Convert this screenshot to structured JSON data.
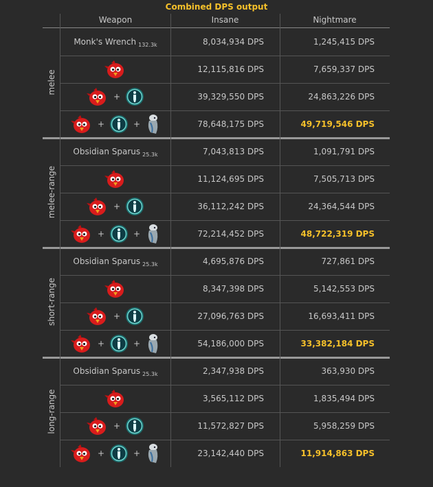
{
  "title": "Combined DPS output",
  "columns": [
    "Weapon",
    "Insane",
    "Nightmare"
  ],
  "separator": "+",
  "groups": [
    {
      "label": "melee",
      "weapon": "Monk's Wrench",
      "weapon_note": "132.3k",
      "rows": [
        {
          "insane": "8,034,934 DPS",
          "nightmare": "1,245,415 DPS"
        },
        {
          "insane": "12,115,816 DPS",
          "nightmare": "7,659,337 DPS"
        },
        {
          "insane": "39,329,550 DPS",
          "nightmare": "24,863,226 DPS"
        },
        {
          "insane": "78,648,175 DPS",
          "nightmare": "49,719,546 DPS"
        }
      ]
    },
    {
      "label": "melee-range",
      "weapon": "Obsidian Sparus",
      "weapon_note": "25.3k",
      "rows": [
        {
          "insane": "7,043,813 DPS",
          "nightmare": "1,091,791 DPS"
        },
        {
          "insane": "11,124,695 DPS",
          "nightmare": "7,505,713 DPS"
        },
        {
          "insane": "36,112,242 DPS",
          "nightmare": "24,364,544 DPS"
        },
        {
          "insane": "72,214,452 DPS",
          "nightmare": "48,722,319 DPS"
        }
      ]
    },
    {
      "label": "short-range",
      "weapon": "Obsidian Sparus",
      "weapon_note": "25.3k",
      "rows": [
        {
          "insane": "4,695,876 DPS",
          "nightmare": "727,861 DPS"
        },
        {
          "insane": "8,347,398 DPS",
          "nightmare": "5,142,553 DPS"
        },
        {
          "insane": "27,096,763 DPS",
          "nightmare": "16,693,411 DPS"
        },
        {
          "insane": "54,186,000 DPS",
          "nightmare": "33,382,184 DPS"
        }
      ]
    },
    {
      "label": "long-range",
      "weapon": "Obsidian Sparus",
      "weapon_note": "25.3k",
      "rows": [
        {
          "insane": "2,347,938 DPS",
          "nightmare": "363,930 DPS"
        },
        {
          "insane": "3,565,112 DPS",
          "nightmare": "1,835,494 DPS"
        },
        {
          "insane": "11,572,827 DPS",
          "nightmare": "5,958,259 DPS"
        },
        {
          "insane": "23,142,440 DPS",
          "nightmare": "11,914,863 DPS"
        }
      ]
    }
  ]
}
